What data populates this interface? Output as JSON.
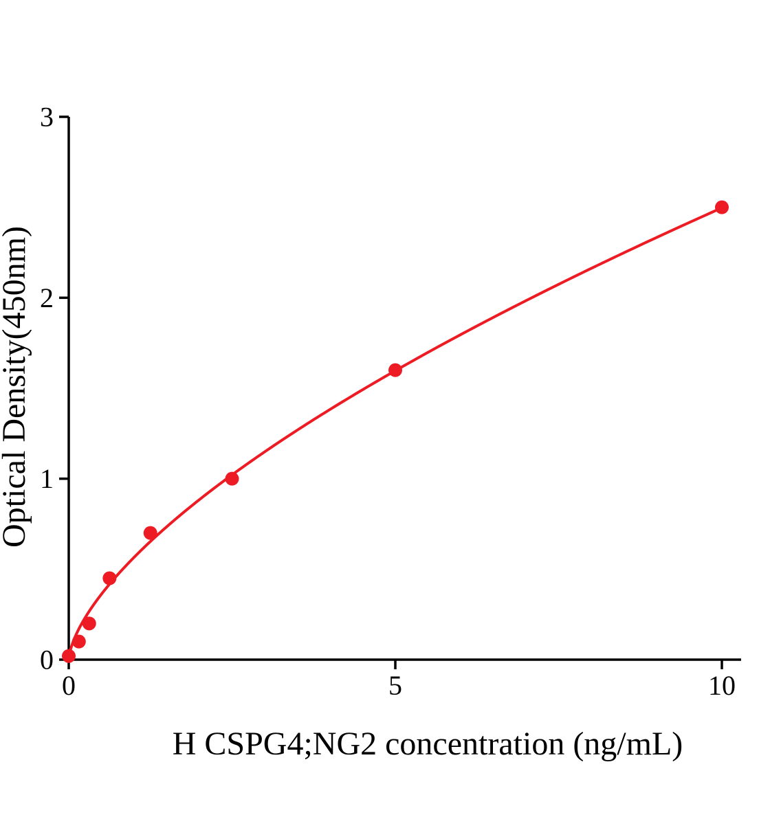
{
  "chart_data": {
    "type": "scatter",
    "title": "",
    "xlabel": "H CSPG4;NG2 concentration (ng/mL)",
    "ylabel": "Optical Density(450nm)",
    "x": [
      0,
      0.156,
      0.313,
      0.625,
      1.25,
      2.5,
      5,
      10
    ],
    "y": [
      0.02,
      0.1,
      0.2,
      0.45,
      0.7,
      1.0,
      1.6,
      2.5
    ],
    "xlim": [
      0,
      10
    ],
    "ylim": [
      0,
      3
    ],
    "xticks": [
      0,
      5,
      10
    ],
    "yticks": [
      0,
      1,
      2,
      3
    ],
    "grid": false,
    "legend_position": "none",
    "curve_fit": {
      "type": "power",
      "a": 0.5655,
      "b": 0.645
    },
    "marker_color": "#ed1c24",
    "line_color": "#ed1c24",
    "axis_color": "#000000"
  }
}
